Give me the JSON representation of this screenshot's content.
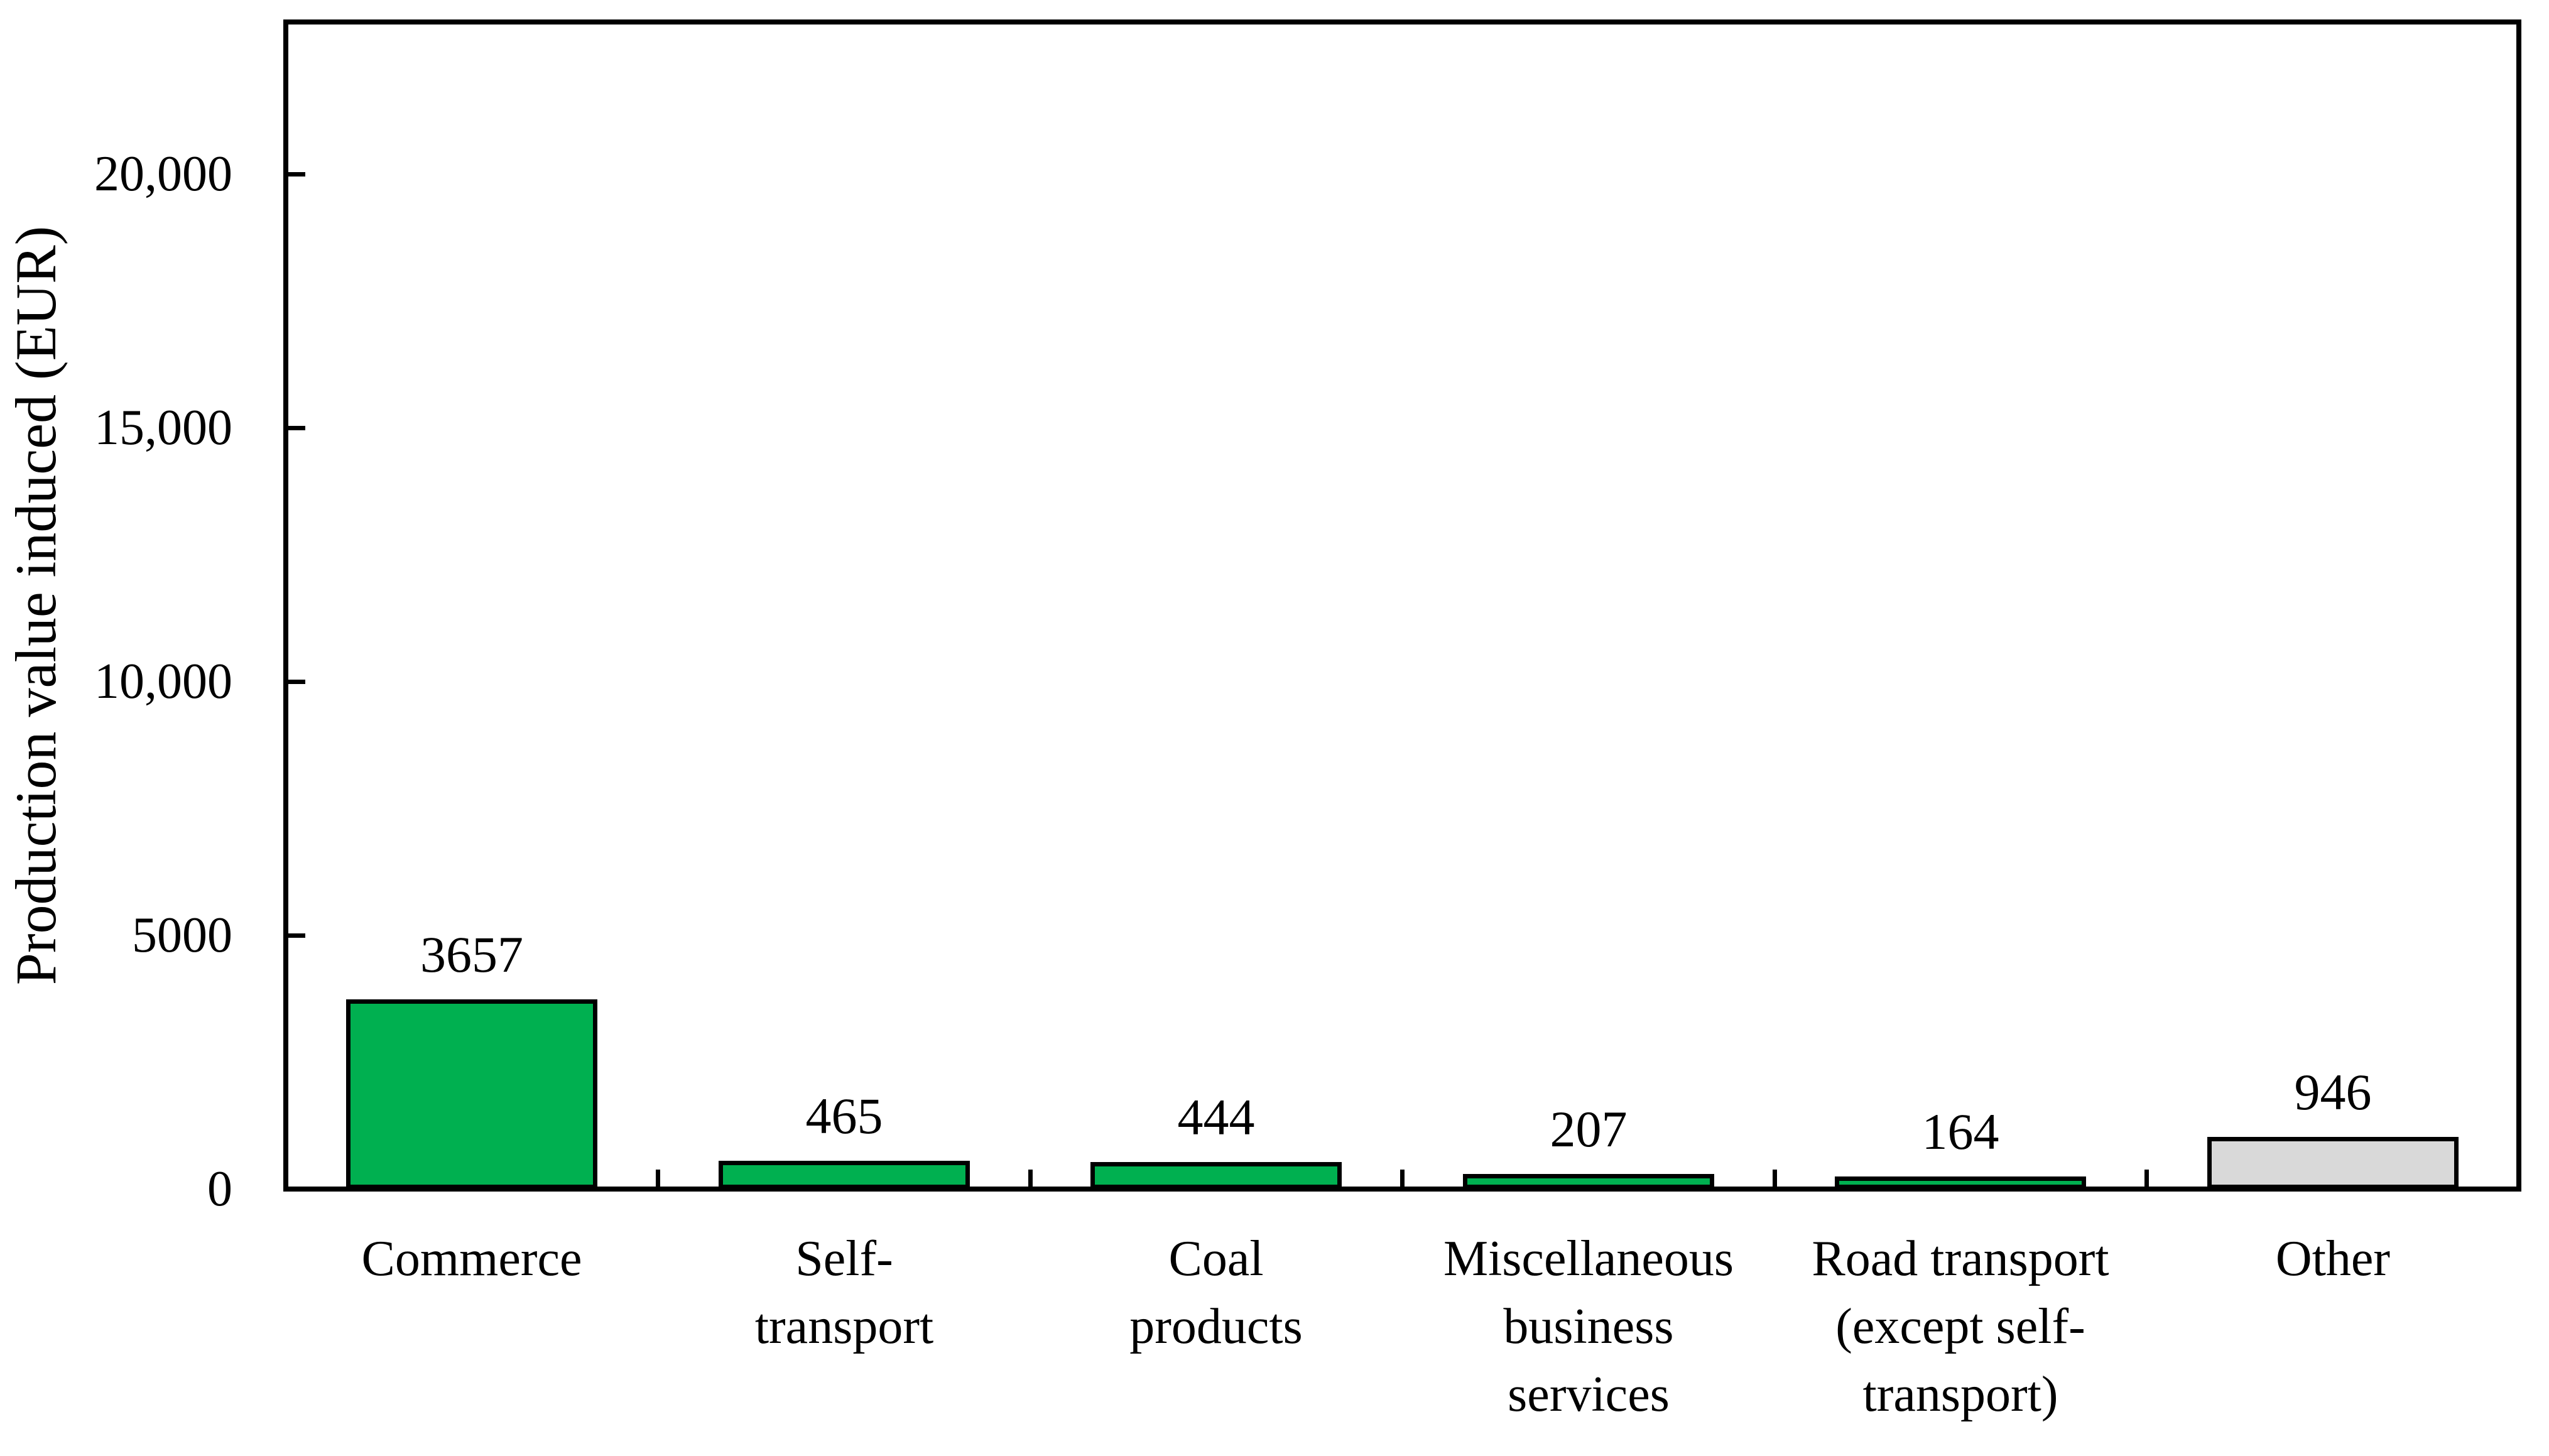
{
  "figure": {
    "background_color": "#ffffff",
    "text_color": "#000000",
    "axis_line_color": "#000000"
  },
  "chart_data": {
    "type": "bar",
    "title": "",
    "xlabel": "",
    "ylabel": "Production value induced (EUR)",
    "categories": [
      {
        "label": "Commerce",
        "lines": [
          "Commerce"
        ]
      },
      {
        "label": "Self-transport",
        "lines": [
          "Self-",
          "transport"
        ]
      },
      {
        "label": "Coal products",
        "lines": [
          "Coal",
          "products"
        ]
      },
      {
        "label": "Miscellaneous business services",
        "lines": [
          "Miscellaneous",
          "business",
          "services"
        ]
      },
      {
        "label": "Road transport (except self-transport)",
        "lines": [
          "Road transport",
          "(except self-",
          "transport)"
        ]
      },
      {
        "label": "Other",
        "lines": [
          "Other"
        ]
      }
    ],
    "values": [
      3657,
      465,
      444,
      207,
      164,
      946
    ],
    "value_labels": [
      "3657",
      "465",
      "444",
      "207",
      "164",
      "946"
    ],
    "bar_colors": [
      "#00B050",
      "#00B050",
      "#00B050",
      "#00B050",
      "#00B050",
      "#D9D9D9"
    ],
    "bar_border_color": "#000000",
    "y_ticks": [
      {
        "value": 0,
        "label": "0"
      },
      {
        "value": 5000,
        "label": "5000"
      },
      {
        "value": 10000,
        "label": "10,000"
      },
      {
        "value": 15000,
        "label": "15,000"
      },
      {
        "value": 20000,
        "label": "20,000"
      }
    ],
    "ylim": [
      0,
      23000
    ],
    "grid": false,
    "legend": null
  }
}
